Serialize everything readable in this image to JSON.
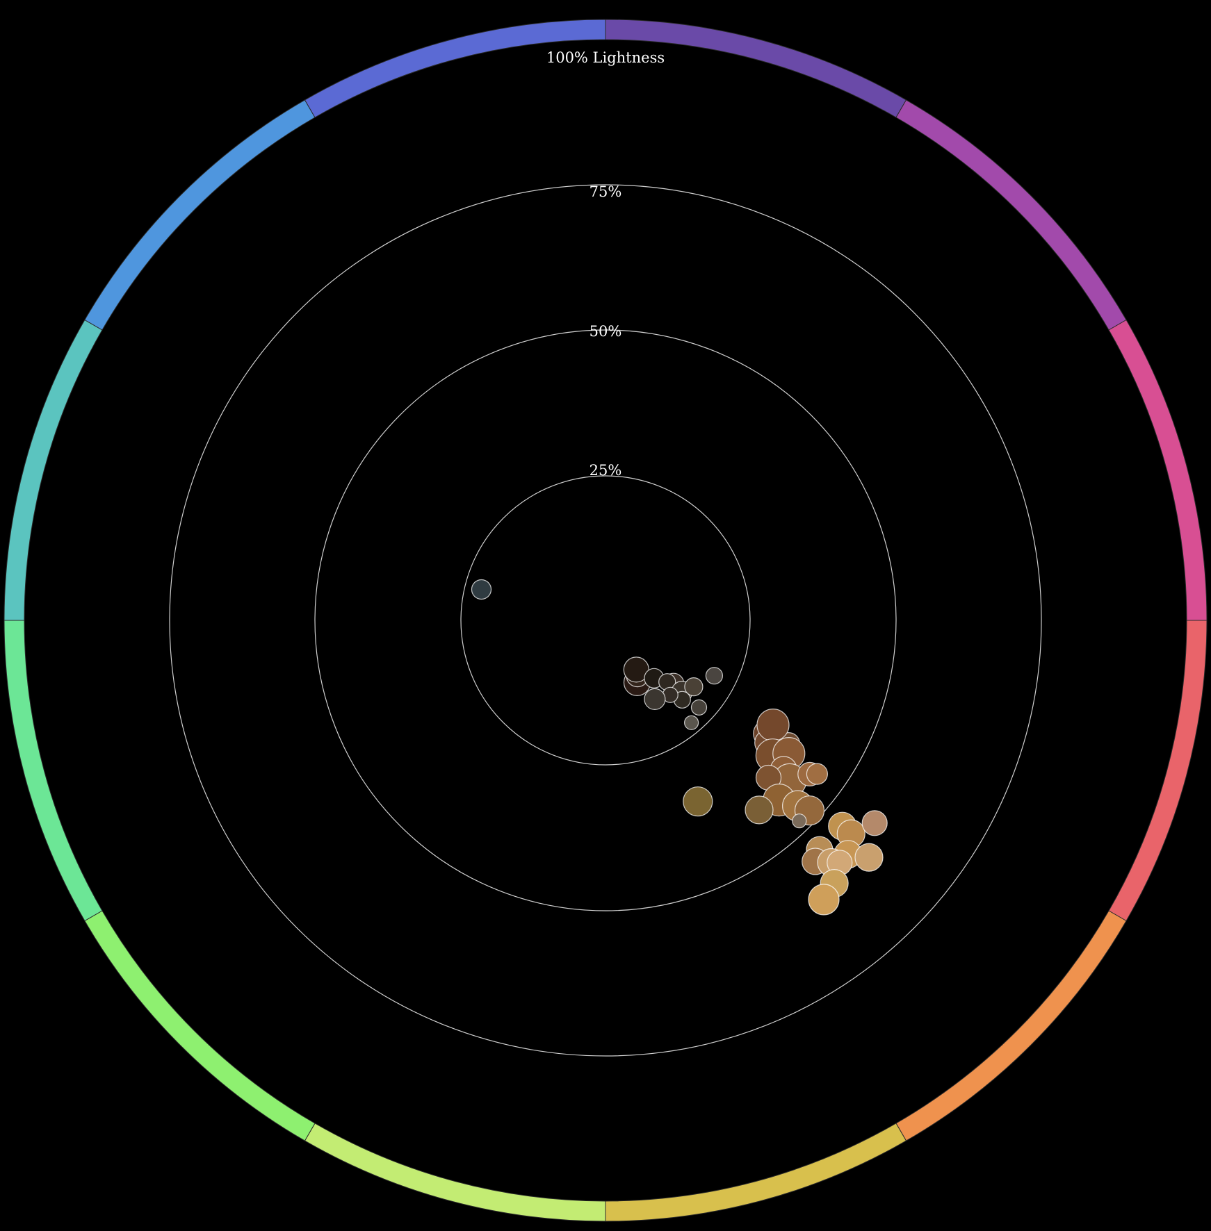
{
  "chart_data": {
    "type": "scatter",
    "description_axis": "radial lightness",
    "ring_labels": {
      "r25": "25%",
      "r50": "50%",
      "r75": "75%",
      "r100": "100% Lightness"
    },
    "hue_segments": [
      {
        "hue": "violet",
        "color": "#6a4aa8"
      },
      {
        "hue": "magenta",
        "color": "#a24aab"
      },
      {
        "hue": "pink",
        "color": "#d84f93"
      },
      {
        "hue": "red",
        "color": "#e9646a"
      },
      {
        "hue": "orange",
        "color": "#ef924e"
      },
      {
        "hue": "yellow",
        "color": "#d8c04d"
      },
      {
        "hue": "lime",
        "color": "#c3ec73"
      },
      {
        "hue": "green",
        "color": "#8ef070"
      },
      {
        "hue": "mint",
        "color": "#6ce696"
      },
      {
        "hue": "teal",
        "color": "#5bc4bf"
      },
      {
        "hue": "sky",
        "color": "#4f96de"
      },
      {
        "hue": "blue",
        "color": "#5b6ad4"
      }
    ],
    "points": [
      {
        "hue": 284,
        "lightness": 22,
        "size": 14,
        "color": "#2f3b41"
      },
      {
        "hue": 153,
        "lightness": 12,
        "size": 19,
        "color": "#2a1a14"
      },
      {
        "hue": 150,
        "lightness": 11,
        "size": 16,
        "color": "#33241b"
      },
      {
        "hue": 148,
        "lightness": 10,
        "size": 18,
        "color": "#241a13"
      },
      {
        "hue": 140,
        "lightness": 13,
        "size": 14,
        "color": "#1f1a14"
      },
      {
        "hue": 133,
        "lightness": 16,
        "size": 15,
        "color": "#3b2f27"
      },
      {
        "hue": 135,
        "lightness": 15,
        "size": 12,
        "color": "#2e2720"
      },
      {
        "hue": 133,
        "lightness": 18,
        "size": 15,
        "color": "#3a332b"
      },
      {
        "hue": 127,
        "lightness": 19,
        "size": 13,
        "color": "#4a4136"
      },
      {
        "hue": 136,
        "lightness": 19,
        "size": 12,
        "color": "#2f2a22"
      },
      {
        "hue": 139,
        "lightness": 17,
        "size": 11,
        "color": "#332c26"
      },
      {
        "hue": 148,
        "lightness": 16,
        "size": 15,
        "color": "#3b3630"
      },
      {
        "hue": 140,
        "lightness": 23,
        "size": 10,
        "color": "#5a564e"
      },
      {
        "hue": 133,
        "lightness": 22,
        "size": 11,
        "color": "#46413a"
      },
      {
        "hue": 117,
        "lightness": 21,
        "size": 12,
        "color": "#4a4540"
      },
      {
        "hue": 125,
        "lightness": 34,
        "size": 20,
        "color": "#6b4128"
      },
      {
        "hue": 127,
        "lightness": 35,
        "size": 19,
        "color": "#73492e"
      },
      {
        "hue": 124,
        "lightness": 38,
        "size": 16,
        "color": "#6d4a30"
      },
      {
        "hue": 122,
        "lightness": 34,
        "size": 23,
        "color": "#74482c"
      },
      {
        "hue": 129,
        "lightness": 37,
        "size": 24,
        "color": "#7a4e2d"
      },
      {
        "hue": 126,
        "lightness": 39,
        "size": 23,
        "color": "#8a5a35"
      },
      {
        "hue": 130,
        "lightness": 40,
        "size": 19,
        "color": "#8f5e37"
      },
      {
        "hue": 131,
        "lightness": 42,
        "size": 24,
        "color": "#92653b"
      },
      {
        "hue": 127,
        "lightness": 44,
        "size": 17,
        "color": "#9d6a40"
      },
      {
        "hue": 126,
        "lightness": 45,
        "size": 15,
        "color": "#a06e42"
      },
      {
        "hue": 134,
        "lightness": 39,
        "size": 18,
        "color": "#7e5331"
      },
      {
        "hue": 136,
        "lightness": 43,
        "size": 23,
        "color": "#8f6233"
      },
      {
        "hue": 134,
        "lightness": 46,
        "size": 22,
        "color": "#a27440"
      },
      {
        "hue": 141,
        "lightness": 42,
        "size": 20,
        "color": "#7a5f36"
      },
      {
        "hue": 133,
        "lightness": 48,
        "size": 21,
        "color": "#94683c"
      },
      {
        "hue": 136,
        "lightness": 48,
        "size": 10,
        "color": "#7b6b5a"
      },
      {
        "hue": 137,
        "lightness": 54,
        "size": 19,
        "color": "#b88d56"
      },
      {
        "hue": 131,
        "lightness": 54,
        "size": 20,
        "color": "#c0924f"
      },
      {
        "hue": 131,
        "lightness": 56,
        "size": 20,
        "color": "#bb8a4e"
      },
      {
        "hue": 139,
        "lightness": 55,
        "size": 19,
        "color": "#a07448"
      },
      {
        "hue": 134,
        "lightness": 58,
        "size": 20,
        "color": "#c79654"
      },
      {
        "hue": 137,
        "lightness": 57,
        "size": 20,
        "color": "#c89e6a"
      },
      {
        "hue": 136,
        "lightness": 58,
        "size": 18,
        "color": "#d2a877"
      },
      {
        "hue": 139,
        "lightness": 60,
        "size": 20,
        "color": "#c9a15c"
      },
      {
        "hue": 142,
        "lightness": 61,
        "size": 22,
        "color": "#cf9f5a"
      },
      {
        "hue": 132,
        "lightness": 61,
        "size": 20,
        "color": "#c9a06e"
      },
      {
        "hue": 127,
        "lightness": 58,
        "size": 18,
        "color": "#b4896a"
      },
      {
        "hue": 153,
        "lightness": 35,
        "size": 21,
        "color": "#7a6431"
      }
    ],
    "ring_style": {
      "grid_color": "#ffffff",
      "point_stroke": "#ffffff",
      "background": "#000000"
    }
  }
}
